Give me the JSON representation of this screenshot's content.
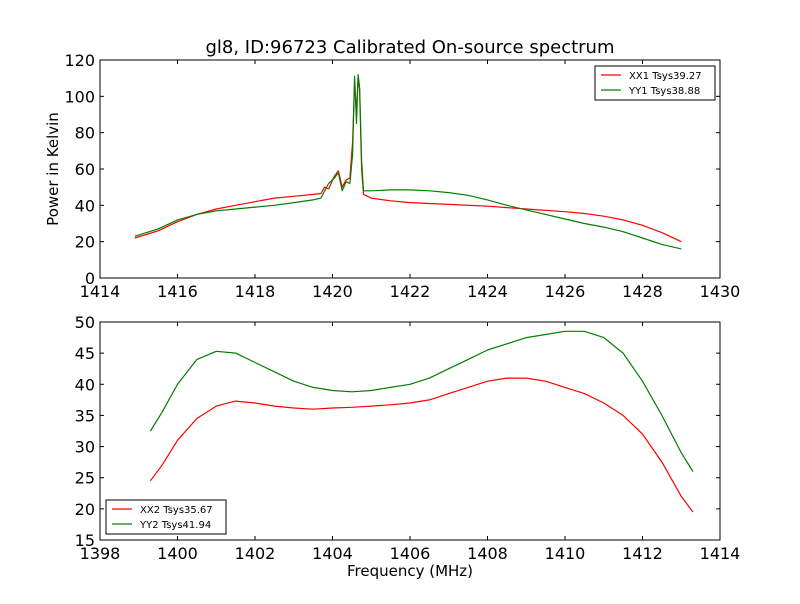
{
  "chart_data": [
    {
      "type": "line",
      "title": "gl8, ID:96723 Calibrated On-source spectrum",
      "xlabel": "",
      "ylabel": "Power in Kelvin",
      "xlim": [
        1414,
        1430
      ],
      "ylim": [
        0,
        120
      ],
      "xticks": [
        "1414",
        "1416",
        "1418",
        "1420",
        "1422",
        "1424",
        "1426",
        "1428",
        "1430"
      ],
      "yticks": [
        "0",
        "20",
        "40",
        "60",
        "80",
        "100",
        "120"
      ],
      "grid": false,
      "legend_position": "upper right",
      "series": [
        {
          "name": "XX1 Tsys39.27",
          "color": "#ff0000",
          "points": [
            [
              1414.9,
              22
            ],
            [
              1415.5,
              26
            ],
            [
              1416,
              31
            ],
            [
              1416.5,
              35
            ],
            [
              1417,
              38
            ],
            [
              1417.5,
              40
            ],
            [
              1418,
              42
            ],
            [
              1418.5,
              44
            ],
            [
              1419,
              45
            ],
            [
              1419.5,
              46
            ],
            [
              1419.7,
              46.5
            ],
            [
              1419.8,
              50
            ],
            [
              1419.9,
              49
            ],
            [
              1420.05,
              56
            ],
            [
              1420.15,
              59
            ],
            [
              1420.25,
              50
            ],
            [
              1420.35,
              54
            ],
            [
              1420.45,
              55
            ],
            [
              1420.52,
              75
            ],
            [
              1420.57,
              108
            ],
            [
              1420.62,
              90
            ],
            [
              1420.66,
              110
            ],
            [
              1420.7,
              104
            ],
            [
              1420.75,
              60
            ],
            [
              1420.8,
              46
            ],
            [
              1421,
              44
            ],
            [
              1421.5,
              42.5
            ],
            [
              1422,
              41.5
            ],
            [
              1423,
              40.5
            ],
            [
              1424,
              39.5
            ],
            [
              1425,
              38
            ],
            [
              1426,
              36.5
            ],
            [
              1426.5,
              35.5
            ],
            [
              1427,
              34
            ],
            [
              1427.5,
              32
            ],
            [
              1428,
              29
            ],
            [
              1428.5,
              25
            ],
            [
              1429,
              20
            ]
          ]
        },
        {
          "name": "YY1 Tsys38.88",
          "color": "#008000",
          "points": [
            [
              1414.9,
              23
            ],
            [
              1415.5,
              27
            ],
            [
              1416,
              32
            ],
            [
              1416.5,
              35
            ],
            [
              1417,
              37
            ],
            [
              1417.5,
              38
            ],
            [
              1418,
              39
            ],
            [
              1418.5,
              40
            ],
            [
              1419,
              41.5
            ],
            [
              1419.5,
              43
            ],
            [
              1419.7,
              44
            ],
            [
              1419.8,
              48
            ],
            [
              1419.9,
              52
            ],
            [
              1420.05,
              55
            ],
            [
              1420.15,
              58
            ],
            [
              1420.25,
              48
            ],
            [
              1420.35,
              53
            ],
            [
              1420.45,
              52
            ],
            [
              1420.52,
              68
            ],
            [
              1420.57,
              111
            ],
            [
              1420.62,
              85
            ],
            [
              1420.66,
              112
            ],
            [
              1420.7,
              105
            ],
            [
              1420.75,
              65
            ],
            [
              1420.8,
              48
            ],
            [
              1421,
              48
            ],
            [
              1421.5,
              48.5
            ],
            [
              1422,
              48.5
            ],
            [
              1422.5,
              48
            ],
            [
              1423,
              47
            ],
            [
              1423.5,
              45.5
            ],
            [
              1424,
              43
            ],
            [
              1424.5,
              40
            ],
            [
              1425,
              37.5
            ],
            [
              1425.5,
              35
            ],
            [
              1426,
              32.5
            ],
            [
              1426.5,
              30
            ],
            [
              1427,
              28
            ],
            [
              1427.5,
              25.5
            ],
            [
              1428,
              22
            ],
            [
              1428.5,
              18.5
            ],
            [
              1429,
              16
            ]
          ]
        }
      ]
    },
    {
      "type": "line",
      "title": "",
      "xlabel": "Frequency (MHz)",
      "ylabel": "",
      "xlim": [
        1398,
        1414
      ],
      "ylim": [
        15,
        50
      ],
      "xticks": [
        "1398",
        "1400",
        "1402",
        "1404",
        "1406",
        "1408",
        "1410",
        "1412",
        "1414"
      ],
      "yticks": [
        "15",
        "20",
        "25",
        "30",
        "35",
        "40",
        "45",
        "50"
      ],
      "grid": false,
      "legend_position": "lower left",
      "series": [
        {
          "name": "XX2 Tsys35.67",
          "color": "#ff0000",
          "points": [
            [
              1399.3,
              24.5
            ],
            [
              1399.6,
              27
            ],
            [
              1400,
              31
            ],
            [
              1400.5,
              34.5
            ],
            [
              1401,
              36.5
            ],
            [
              1401.5,
              37.3
            ],
            [
              1402,
              37
            ],
            [
              1402.5,
              36.5
            ],
            [
              1403,
              36.2
            ],
            [
              1403.5,
              36
            ],
            [
              1404,
              36.2
            ],
            [
              1404.5,
              36.3
            ],
            [
              1405,
              36.5
            ],
            [
              1405.5,
              36.7
            ],
            [
              1406,
              37
            ],
            [
              1406.5,
              37.5
            ],
            [
              1407,
              38.5
            ],
            [
              1407.5,
              39.5
            ],
            [
              1408,
              40.5
            ],
            [
              1408.5,
              41
            ],
            [
              1409,
              41
            ],
            [
              1409.5,
              40.5
            ],
            [
              1410,
              39.5
            ],
            [
              1410.5,
              38.5
            ],
            [
              1411,
              37
            ],
            [
              1411.5,
              35
            ],
            [
              1412,
              32
            ],
            [
              1412.5,
              27.5
            ],
            [
              1413,
              22
            ],
            [
              1413.3,
              19.5
            ]
          ]
        },
        {
          "name": "YY2 Tsys41.94",
          "color": "#008000",
          "points": [
            [
              1399.3,
              32.5
            ],
            [
              1399.6,
              35.5
            ],
            [
              1400,
              40
            ],
            [
              1400.5,
              44
            ],
            [
              1401,
              45.3
            ],
            [
              1401.5,
              45
            ],
            [
              1402,
              43.5
            ],
            [
              1402.5,
              42
            ],
            [
              1403,
              40.5
            ],
            [
              1403.5,
              39.5
            ],
            [
              1404,
              39
            ],
            [
              1404.5,
              38.8
            ],
            [
              1405,
              39
            ],
            [
              1405.5,
              39.5
            ],
            [
              1406,
              40
            ],
            [
              1406.5,
              41
            ],
            [
              1407,
              42.5
            ],
            [
              1407.5,
              44
            ],
            [
              1408,
              45.5
            ],
            [
              1408.5,
              46.5
            ],
            [
              1409,
              47.5
            ],
            [
              1409.5,
              48
            ],
            [
              1410,
              48.5
            ],
            [
              1410.5,
              48.5
            ],
            [
              1411,
              47.5
            ],
            [
              1411.5,
              45
            ],
            [
              1412,
              40.5
            ],
            [
              1412.5,
              35
            ],
            [
              1413,
              29
            ],
            [
              1413.3,
              26
            ]
          ]
        }
      ]
    }
  ]
}
